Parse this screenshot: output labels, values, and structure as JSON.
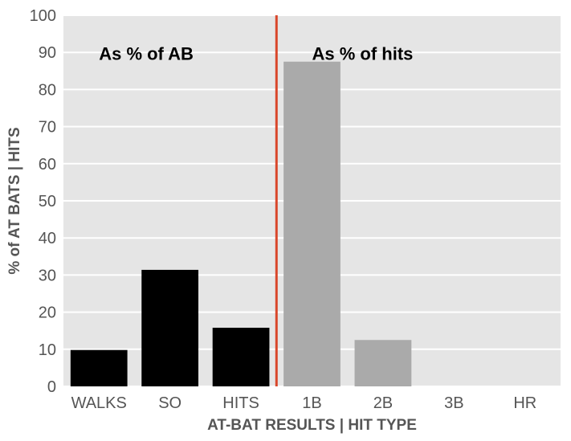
{
  "chart_data": {
    "type": "bar",
    "categories": [
      "WALKS",
      "SO",
      "HITS",
      "1B",
      "2B",
      "3B",
      "HR"
    ],
    "values": [
      9.8,
      31.4,
      15.8,
      87.5,
      12.5,
      0,
      0
    ],
    "bar_colors": [
      "#000000",
      "#000000",
      "#000000",
      "#aaaaaa",
      "#aaaaaa",
      "#aaaaaa",
      "#aaaaaa"
    ],
    "ylim": [
      0,
      100
    ],
    "yticks": [
      0,
      10,
      20,
      30,
      40,
      50,
      60,
      70,
      80,
      90,
      100
    ],
    "xlabel": "AT-BAT RESULTS | HIT TYPE",
    "ylabel": "% of AT BATS | HITS",
    "grid": "horizontal",
    "background_color": "#e5e5e5",
    "divider": {
      "x_between": [
        "HITS",
        "1B"
      ],
      "color": "#d9472b"
    },
    "annotations": [
      {
        "text": "As % of AB",
        "x": "WALKS",
        "y": 89.5
      },
      {
        "text": "As % of hits",
        "x": "1B",
        "y": 89.5
      }
    ]
  }
}
